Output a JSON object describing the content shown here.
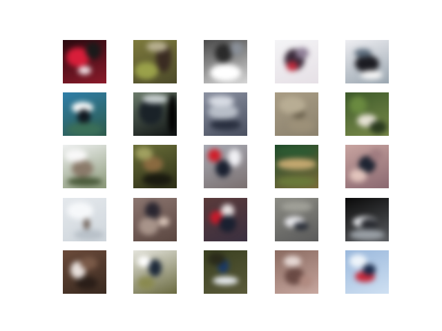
{
  "figure": {
    "rows": 5,
    "cols": 5
  },
  "tiles": [
    {
      "id": "r1c1",
      "bg": [
        "#2a0a10",
        "#8b1a2a"
      ],
      "blobs": [
        [
          "#d81e3a",
          35,
          40,
          55,
          45
        ],
        [
          "#1a1a1a",
          70,
          25,
          35,
          40
        ],
        [
          "#f2e0e6",
          50,
          70,
          30,
          20
        ]
      ]
    },
    {
      "id": "r1c2",
      "bg": [
        "#7d7a3c",
        "#4c4a2a"
      ],
      "blobs": [
        [
          "#9aa14a",
          30,
          70,
          55,
          40
        ],
        [
          "#3a2b22",
          70,
          40,
          35,
          70
        ],
        [
          "#b8b090",
          55,
          15,
          50,
          25
        ]
      ]
    },
    {
      "id": "r1c3",
      "bg": [
        "#4a4a4a",
        "#d6d6d6"
      ],
      "blobs": [
        [
          "#ffffff",
          50,
          75,
          70,
          40
        ],
        [
          "#2a2a2a",
          45,
          30,
          40,
          45
        ],
        [
          "#8a9099",
          75,
          20,
          30,
          30
        ]
      ]
    },
    {
      "id": "r1c4",
      "bg": [
        "#f4f4f6",
        "#e6e0e6"
      ],
      "blobs": [
        [
          "#3a2a3a",
          45,
          45,
          45,
          50
        ],
        [
          "#c0283a",
          40,
          60,
          25,
          22
        ],
        [
          "#8e7e96",
          62,
          30,
          30,
          25
        ]
      ]
    },
    {
      "id": "r1c5",
      "bg": [
        "#eeeef2",
        "#9aa6b0"
      ],
      "blobs": [
        [
          "#1c1c22",
          50,
          55,
          55,
          40
        ],
        [
          "#5a6a7a",
          40,
          30,
          40,
          20
        ],
        [
          "#f6f6f6",
          60,
          80,
          50,
          20
        ]
      ]
    },
    {
      "id": "r2c1",
      "bg": [
        "#2f7ea8",
        "#2e5a4a"
      ],
      "blobs": [
        [
          "#ffffff",
          45,
          35,
          50,
          25
        ],
        [
          "#101820",
          48,
          55,
          30,
          35
        ],
        [
          "#3b6f58",
          50,
          85,
          80,
          30
        ]
      ]
    },
    {
      "id": "r2c2",
      "bg": [
        "#6a7a6a",
        "#101414"
      ],
      "blobs": [
        [
          "#1a2228",
          40,
          45,
          55,
          60
        ],
        [
          "#c8d0d0",
          50,
          15,
          60,
          20
        ],
        [
          "#000000",
          90,
          50,
          20,
          90
        ]
      ]
    },
    {
      "id": "r2c3",
      "bg": [
        "#8a90a0",
        "#4a5060"
      ],
      "blobs": [
        [
          "#b8bec8",
          45,
          45,
          70,
          35
        ],
        [
          "#2a3040",
          50,
          75,
          70,
          25
        ],
        [
          "#d8dce4",
          40,
          20,
          60,
          25
        ]
      ]
    },
    {
      "id": "r2c4",
      "bg": [
        "#a89c84",
        "#8c826e"
      ],
      "blobs": [
        [
          "#6a604c",
          55,
          50,
          30,
          20
        ],
        [
          "#b8ad94",
          40,
          30,
          60,
          40
        ],
        [
          "#9c9078",
          60,
          75,
          60,
          30
        ]
      ]
    },
    {
      "id": "r2c5",
      "bg": [
        "#3d5a2a",
        "#7a8a4a"
      ],
      "blobs": [
        [
          "#e6e2d4",
          50,
          65,
          45,
          30
        ],
        [
          "#6a8a40",
          30,
          30,
          40,
          40
        ],
        [
          "#2a3a1e",
          75,
          80,
          40,
          30
        ]
      ]
    },
    {
      "id": "r3c1",
      "bg": [
        "#eef0f0",
        "#8c9a7a"
      ],
      "blobs": [
        [
          "#8a7a6a",
          45,
          55,
          50,
          40
        ],
        [
          "#f8f8f8",
          30,
          25,
          50,
          30
        ],
        [
          "#4a5a3a",
          50,
          85,
          80,
          20
        ]
      ]
    },
    {
      "id": "r3c2",
      "bg": [
        "#6a6e38",
        "#2e3018"
      ],
      "blobs": [
        [
          "#8a6a40",
          45,
          45,
          45,
          35
        ],
        [
          "#a0a060",
          25,
          20,
          40,
          30
        ],
        [
          "#1a1a10",
          55,
          80,
          70,
          30
        ]
      ]
    },
    {
      "id": "r3c3",
      "bg": [
        "#a8aab4",
        "#7a7070"
      ],
      "blobs": [
        [
          "#d01e2a",
          25,
          25,
          30,
          30
        ],
        [
          "#1a2030",
          45,
          55,
          35,
          40
        ],
        [
          "#f0f0f4",
          70,
          30,
          30,
          40
        ]
      ]
    },
    {
      "id": "r3c4",
      "bg": [
        "#1c4a2a",
        "#7a6a3a"
      ],
      "blobs": [
        [
          "#c4a870",
          50,
          45,
          90,
          25
        ],
        [
          "#2e5a32",
          50,
          15,
          90,
          20
        ],
        [
          "#6a7a3a",
          50,
          85,
          90,
          25
        ]
      ]
    },
    {
      "id": "r3c5",
      "bg": [
        "#c8a4a0",
        "#8a6870"
      ],
      "blobs": [
        [
          "#1e2432",
          50,
          45,
          40,
          40
        ],
        [
          "#e2c4bc",
          30,
          70,
          40,
          30
        ],
        [
          "#a07c80",
          70,
          25,
          30,
          30
        ]
      ]
    },
    {
      "id": "r4c1",
      "bg": [
        "#e4e8ec",
        "#cfd6dc"
      ],
      "blobs": [
        [
          "#6a5a50",
          55,
          60,
          15,
          25
        ],
        [
          "#f6f8fa",
          40,
          30,
          60,
          40
        ],
        [
          "#b8c0c8",
          60,
          85,
          70,
          25
        ]
      ]
    },
    {
      "id": "r4c2",
      "bg": [
        "#8c7670",
        "#5a4640"
      ],
      "blobs": [
        [
          "#2a2630",
          45,
          30,
          35,
          40
        ],
        [
          "#a8948a",
          35,
          65,
          45,
          40
        ],
        [
          "#d8c4b8",
          70,
          55,
          25,
          20
        ]
      ]
    },
    {
      "id": "r4c3",
      "bg": [
        "#5a3a3a",
        "#3a3040"
      ],
      "blobs": [
        [
          "#c81a2a",
          30,
          45,
          30,
          30
        ],
        [
          "#e8e0e0",
          55,
          30,
          30,
          30
        ],
        [
          "#1a2030",
          55,
          60,
          40,
          40
        ]
      ]
    },
    {
      "id": "r4c4",
      "bg": [
        "#8c8c84",
        "#5a5a5a"
      ],
      "blobs": [
        [
          "#e8e8ec",
          45,
          55,
          45,
          25
        ],
        [
          "#2a2e38",
          60,
          65,
          35,
          20
        ],
        [
          "#a0a098",
          50,
          20,
          70,
          25
        ]
      ]
    },
    {
      "id": "r4c5",
      "bg": [
        "#0a0a0a",
        "#5a5c60"
      ],
      "blobs": [
        [
          "#e8eaee",
          45,
          55,
          55,
          25
        ],
        [
          "#2a2c32",
          55,
          60,
          40,
          25
        ],
        [
          "#9aa0a6",
          50,
          85,
          80,
          25
        ]
      ]
    },
    {
      "id": "r5c1",
      "bg": [
        "#6a4a3a",
        "#3a2a20"
      ],
      "blobs": [
        [
          "#e8e0dc",
          35,
          45,
          35,
          40
        ],
        [
          "#7a5a48",
          60,
          30,
          40,
          30
        ],
        [
          "#2a1e18",
          55,
          75,
          50,
          30
        ]
      ]
    },
    {
      "id": "r5c2",
      "bg": [
        "#e4e4dc",
        "#6a6a40"
      ],
      "blobs": [
        [
          "#1e2a3a",
          50,
          40,
          30,
          40
        ],
        [
          "#8a8a50",
          30,
          75,
          40,
          30
        ],
        [
          "#ffffff",
          25,
          25,
          30,
          25
        ]
      ]
    },
    {
      "id": "r5c3",
      "bg": [
        "#3a4020",
        "#5a5a3a"
      ],
      "blobs": [
        [
          "#1a3a6a",
          45,
          35,
          25,
          35
        ],
        [
          "#e8ecf0",
          50,
          70,
          60,
          20
        ],
        [
          "#2a2a1a",
          30,
          20,
          40,
          30
        ]
      ]
    },
    {
      "id": "r5c4",
      "bg": [
        "#8a6a60",
        "#c8a8a0"
      ],
      "blobs": [
        [
          "#e6d8d4",
          40,
          25,
          40,
          25
        ],
        [
          "#6a4a44",
          45,
          60,
          45,
          40
        ],
        [
          "#b08a80",
          70,
          70,
          30,
          30
        ]
      ]
    },
    {
      "id": "r5c5",
      "bg": [
        "#9ab8dc",
        "#cfe0f2"
      ],
      "blobs": [
        [
          "#c8283a",
          45,
          60,
          45,
          25
        ],
        [
          "#1a2a4a",
          55,
          45,
          30,
          25
        ],
        [
          "#eef4fa",
          30,
          25,
          40,
          30
        ]
      ]
    }
  ]
}
